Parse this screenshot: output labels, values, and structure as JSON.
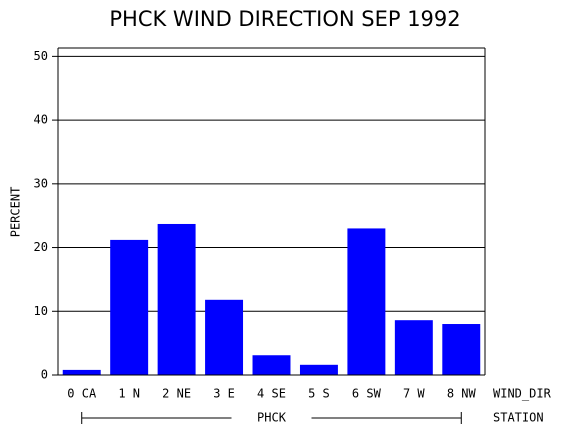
{
  "chart_data": {
    "type": "bar",
    "title": "PHCK WIND DIRECTION SEP 1992",
    "categories": [
      "0 CA",
      "1 N",
      "2 NE",
      "3 E",
      "4 SE",
      "5 S",
      "6 SW",
      "7 W",
      "8 NW"
    ],
    "values": [
      0.8,
      21.2,
      23.7,
      11.8,
      3.1,
      1.6,
      23.0,
      8.6,
      8.0
    ],
    "color": "#0000ff",
    "ylim": [
      0,
      51
    ],
    "yticks": [
      0,
      10,
      20,
      30,
      40,
      50
    ],
    "grid": true,
    "y_label": "PERCENT",
    "x_label": "WIND_DIR",
    "group_label": "PHCK",
    "group_axis_label": "STATION"
  }
}
